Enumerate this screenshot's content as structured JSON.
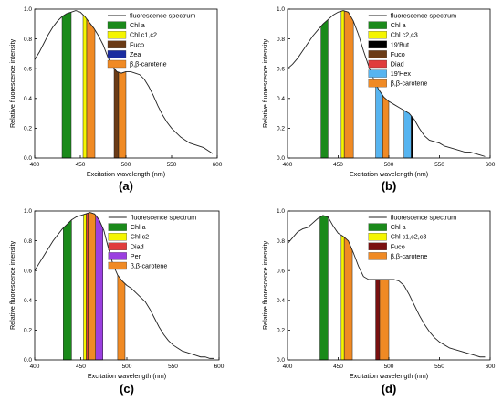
{
  "chart_data": [
    {
      "type": "line",
      "panel_label": "(a)",
      "xlabel": "Excitation wavelength (nm)",
      "ylabel": "Relative fluorescence intensity",
      "xlim": [
        400,
        600
      ],
      "ylim": [
        0.0,
        1.0
      ],
      "xticks": [
        "400",
        "450",
        "500",
        "550",
        "600"
      ],
      "yticks": [
        "0.0",
        "0.2",
        "0.4",
        "0.6",
        "0.8",
        "1.0"
      ],
      "legend_position": "top-right",
      "series": [
        {
          "name": "fluorescence spectrum",
          "x": [
            400,
            405,
            410,
            415,
            420,
            425,
            430,
            435,
            440,
            445,
            450,
            455,
            460,
            465,
            470,
            475,
            480,
            485,
            490,
            495,
            500,
            505,
            510,
            515,
            520,
            525,
            530,
            535,
            540,
            545,
            550,
            555,
            560,
            565,
            570,
            575,
            580,
            585,
            590,
            595
          ],
          "y": [
            0.66,
            0.71,
            0.77,
            0.83,
            0.88,
            0.92,
            0.95,
            0.97,
            0.98,
            0.99,
            0.98,
            0.95,
            0.91,
            0.87,
            0.82,
            0.76,
            0.68,
            0.62,
            0.58,
            0.57,
            0.58,
            0.58,
            0.57,
            0.56,
            0.53,
            0.48,
            0.42,
            0.35,
            0.29,
            0.24,
            0.2,
            0.17,
            0.14,
            0.12,
            0.1,
            0.09,
            0.08,
            0.07,
            0.05,
            0.03
          ]
        }
      ],
      "bands": [
        {
          "name": "Chl a",
          "color": "#1a8a1a",
          "x0": 430,
          "x1": 440
        },
        {
          "name": "Chl c1,c2",
          "color": "#f5f500",
          "x0": 453,
          "x1": 457
        },
        {
          "name": "Fuco",
          "color": "#6b3b16",
          "x0": 487,
          "x1": 492
        },
        {
          "name": "Zea",
          "color": "#1a2ca0",
          "x0": 0,
          "x1": 0
        },
        {
          "name": "β,β-carotene",
          "color": "#f08a24",
          "x0": 457,
          "x1": 466
        },
        {
          "name": "β,β-carotene",
          "color": "#f08a24",
          "x0": 492,
          "x1": 500
        }
      ]
    },
    {
      "type": "line",
      "panel_label": "(b)",
      "xlabel": "Excitation wavelength (nm)",
      "ylabel": "Relative fluorescence intensity",
      "xlim": [
        400,
        600
      ],
      "ylim": [
        0.0,
        1.0
      ],
      "xticks": [
        "400",
        "450",
        "500",
        "550",
        "600"
      ],
      "yticks": [
        "0.0",
        "0.2",
        "0.4",
        "0.6",
        "0.8",
        "1.0"
      ],
      "legend_position": "top-right",
      "series": [
        {
          "name": "fluorescence spectrum",
          "x": [
            400,
            405,
            410,
            415,
            420,
            425,
            430,
            435,
            440,
            445,
            450,
            455,
            460,
            465,
            470,
            475,
            480,
            485,
            490,
            495,
            500,
            505,
            510,
            515,
            520,
            525,
            530,
            535,
            540,
            545,
            550,
            555,
            560,
            565,
            570,
            575,
            580,
            585,
            590,
            595
          ],
          "y": [
            0.6,
            0.63,
            0.67,
            0.72,
            0.77,
            0.82,
            0.86,
            0.9,
            0.93,
            0.96,
            0.98,
            0.99,
            0.98,
            0.92,
            0.83,
            0.72,
            0.62,
            0.53,
            0.46,
            0.41,
            0.38,
            0.36,
            0.34,
            0.32,
            0.3,
            0.26,
            0.2,
            0.15,
            0.12,
            0.11,
            0.1,
            0.08,
            0.07,
            0.06,
            0.05,
            0.04,
            0.04,
            0.03,
            0.02,
            0.01
          ]
        }
      ],
      "bands": [
        {
          "name": "Chl a",
          "color": "#1a8a1a",
          "x0": 433,
          "x1": 440
        },
        {
          "name": "Chl c2,c3",
          "color": "#f5f500",
          "x0": 453,
          "x1": 456
        },
        {
          "name": "19'But",
          "color": "#000000",
          "x0": 522,
          "x1": 524
        },
        {
          "name": "Fuco",
          "color": "#6b3b16",
          "x0": 0,
          "x1": 0
        },
        {
          "name": "Diad",
          "color": "#e03c3c",
          "x0": 0,
          "x1": 0
        },
        {
          "name": "19'Hex",
          "color": "#56b4f0",
          "x0": 487,
          "x1": 494
        },
        {
          "name": "19'Hex",
          "color": "#56b4f0",
          "x0": 515,
          "x1": 522
        },
        {
          "name": "β,β-carotene",
          "color": "#f08a24",
          "x0": 456,
          "x1": 465
        },
        {
          "name": "β,β-carotene",
          "color": "#f08a24",
          "x0": 494,
          "x1": 500
        }
      ]
    },
    {
      "type": "line",
      "panel_label": "(c)",
      "xlabel": "Excitation wavelength (nm)",
      "ylabel": "Relative fluorescence intensity",
      "xlim": [
        400,
        600
      ],
      "ylim": [
        0.0,
        1.0
      ],
      "xticks": [
        "400",
        "450",
        "500",
        "550",
        "600"
      ],
      "yticks": [
        "0.0",
        "0.2",
        "0.4",
        "0.6",
        "0.8",
        "1.0"
      ],
      "legend_position": "top-right",
      "series": [
        {
          "name": "fluorescence spectrum",
          "x": [
            400,
            405,
            410,
            415,
            420,
            425,
            430,
            435,
            440,
            445,
            450,
            455,
            460,
            465,
            470,
            475,
            480,
            485,
            490,
            495,
            500,
            505,
            510,
            515,
            520,
            525,
            530,
            535,
            540,
            545,
            550,
            555,
            560,
            565,
            570,
            575,
            580,
            585,
            590,
            595
          ],
          "y": [
            0.6,
            0.65,
            0.7,
            0.75,
            0.8,
            0.84,
            0.88,
            0.91,
            0.94,
            0.96,
            0.97,
            0.98,
            0.99,
            0.98,
            0.94,
            0.87,
            0.75,
            0.64,
            0.57,
            0.53,
            0.5,
            0.48,
            0.45,
            0.42,
            0.39,
            0.34,
            0.28,
            0.22,
            0.17,
            0.13,
            0.1,
            0.08,
            0.06,
            0.05,
            0.04,
            0.03,
            0.02,
            0.02,
            0.01,
            0.01
          ]
        }
      ],
      "bands": [
        {
          "name": "Chl a",
          "color": "#1a8a1a",
          "x0": 431,
          "x1": 440
        },
        {
          "name": "Chl c2",
          "color": "#f5f500",
          "x0": 453,
          "x1": 456
        },
        {
          "name": "Diad",
          "color": "#e03c3c",
          "x0": 456,
          "x1": 458
        },
        {
          "name": "Per",
          "color": "#9b3fe0",
          "x0": 466,
          "x1": 474
        },
        {
          "name": "β,β-carotene",
          "color": "#f08a24",
          "x0": 458,
          "x1": 466
        },
        {
          "name": "β,β-carotene",
          "color": "#f08a24",
          "x0": 490,
          "x1": 498
        }
      ]
    },
    {
      "type": "line",
      "panel_label": "(d)",
      "xlabel": "Excitation wavelength (nm)",
      "ylabel": "Relative fluorescence intensity",
      "xlim": [
        400,
        600
      ],
      "ylim": [
        0.0,
        1.0
      ],
      "xticks": [
        "400",
        "450",
        "500",
        "550",
        "600"
      ],
      "yticks": [
        "0.0",
        "0.2",
        "0.4",
        "0.6",
        "0.8",
        "1.0"
      ],
      "legend_position": "top-right",
      "series": [
        {
          "name": "fluorescence spectrum",
          "x": [
            400,
            405,
            410,
            415,
            420,
            425,
            430,
            435,
            440,
            445,
            450,
            455,
            460,
            465,
            470,
            475,
            480,
            485,
            490,
            495,
            500,
            505,
            510,
            515,
            520,
            525,
            530,
            535,
            540,
            545,
            550,
            555,
            560,
            565,
            570,
            575,
            580,
            585,
            590,
            595
          ],
          "y": [
            0.78,
            0.82,
            0.86,
            0.88,
            0.89,
            0.92,
            0.95,
            0.97,
            0.96,
            0.9,
            0.85,
            0.83,
            0.8,
            0.72,
            0.63,
            0.56,
            0.54,
            0.54,
            0.54,
            0.54,
            0.54,
            0.54,
            0.53,
            0.5,
            0.44,
            0.37,
            0.3,
            0.24,
            0.19,
            0.15,
            0.12,
            0.1,
            0.08,
            0.07,
            0.06,
            0.05,
            0.04,
            0.03,
            0.02,
            0.02
          ]
        }
      ],
      "bands": [
        {
          "name": "Chl a",
          "color": "#1a8a1a",
          "x0": 432,
          "x1": 440
        },
        {
          "name": "Chl c1,c2,c3",
          "color": "#f5f500",
          "x0": 453,
          "x1": 456
        },
        {
          "name": "Fuco",
          "color": "#7a1010",
          "x0": 487,
          "x1": 491
        },
        {
          "name": "β,β-carotene",
          "color": "#f08a24",
          "x0": 456,
          "x1": 464
        },
        {
          "name": "β,β-carotene",
          "color": "#f08a24",
          "x0": 491,
          "x1": 500
        }
      ]
    }
  ]
}
